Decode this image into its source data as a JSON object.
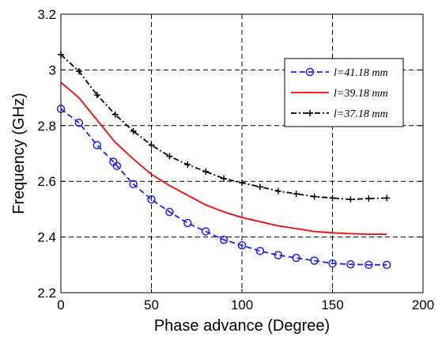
{
  "chart_data": {
    "type": "line",
    "title": "",
    "xlabel": "Phase advance (Degree)",
    "ylabel": "Frequency (GHz)",
    "xlim": [
      0,
      200
    ],
    "ylim": [
      2.2,
      3.2
    ],
    "x_ticks": [
      "0",
      "50",
      "100",
      "150",
      "200"
    ],
    "y_ticks": [
      "2.2",
      "2.4",
      "2.6",
      "2.8",
      "3",
      "3.2"
    ],
    "grid": true,
    "legend_position": "upper-right",
    "series": [
      {
        "name": "l=41.18 mm",
        "color": "#1f1fff",
        "line_style": "dashed",
        "marker": "circle",
        "x": [
          0,
          10,
          20,
          29,
          31,
          40,
          50,
          60,
          70,
          80,
          90,
          100,
          110,
          120,
          130,
          140,
          150,
          160,
          170,
          180
        ],
        "y": [
          2.86,
          2.81,
          2.73,
          2.67,
          2.655,
          2.59,
          2.535,
          2.49,
          2.45,
          2.42,
          2.39,
          2.37,
          2.35,
          2.335,
          2.325,
          2.315,
          2.305,
          2.302,
          2.3,
          2.3
        ]
      },
      {
        "name": "l=39.18 mm",
        "color": "#ff0000",
        "line_style": "solid",
        "marker": "none",
        "x": [
          0,
          10,
          20,
          30,
          40,
          50,
          60,
          70,
          80,
          90,
          100,
          110,
          120,
          130,
          140,
          150,
          160,
          170,
          180
        ],
        "y": [
          2.955,
          2.9,
          2.82,
          2.74,
          2.68,
          2.625,
          2.585,
          2.55,
          2.515,
          2.49,
          2.47,
          2.455,
          2.44,
          2.43,
          2.42,
          2.415,
          2.412,
          2.41,
          2.41
        ]
      },
      {
        "name": "l=37.18 mm",
        "color": "#000000",
        "line_style": "dashdot",
        "marker": "plus",
        "x": [
          0,
          10,
          20,
          30,
          40,
          50,
          60,
          70,
          80,
          90,
          100,
          110,
          120,
          130,
          140,
          150,
          160,
          170,
          180
        ],
        "y": [
          3.055,
          2.995,
          2.91,
          2.84,
          2.78,
          2.73,
          2.69,
          2.66,
          2.635,
          2.61,
          2.595,
          2.58,
          2.565,
          2.555,
          2.545,
          2.54,
          2.535,
          2.538,
          2.54
        ]
      }
    ]
  }
}
